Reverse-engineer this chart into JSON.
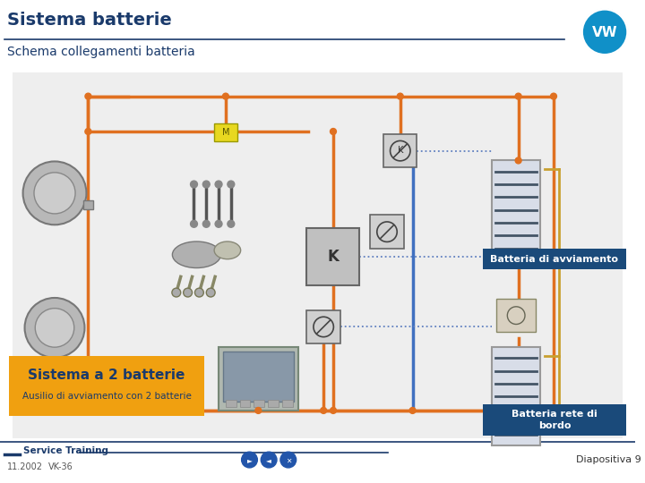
{
  "title": "Sistema batterie",
  "subtitle": "Schema collegamenti batteria",
  "bg_color": "#f2f2f2",
  "white": "#ffffff",
  "title_color": "#1a3a6b",
  "title_fontsize": 14,
  "subtitle_fontsize": 10,
  "label_batteria_avv": "Batteria di avviamento",
  "label_batteria_rete": "Batteria rete di\nbordo",
  "label_sistema": "Sistema a 2 batterie",
  "label_ausilio": "Ausilio di avviamento con 2 batterie",
  "footer_left": "Service Training",
  "footer_date": "11.2002",
  "footer_code": "VK-36",
  "footer_right": "Diapositiva 9",
  "orange": "#e07020",
  "blue_wire": "#4070c0",
  "gold_wire": "#c8a030",
  "dark_blue": "#1a3a6b",
  "label_bg": "#1a4a7a",
  "sistema_bg": "#f0a010",
  "sistema_text": "#1a3a6b",
  "vw_blue": "#1090c8",
  "wire_lw": 2.5,
  "dot_r": 3.5,
  "bat_fill": "#d8dde8",
  "bat_edge": "#999999",
  "comp_fill": "#cccccc",
  "comp_edge": "#888888",
  "relay_fill": "#c0c0c0",
  "relay_edge": "#666666",
  "dashed_color": "#6080c0"
}
